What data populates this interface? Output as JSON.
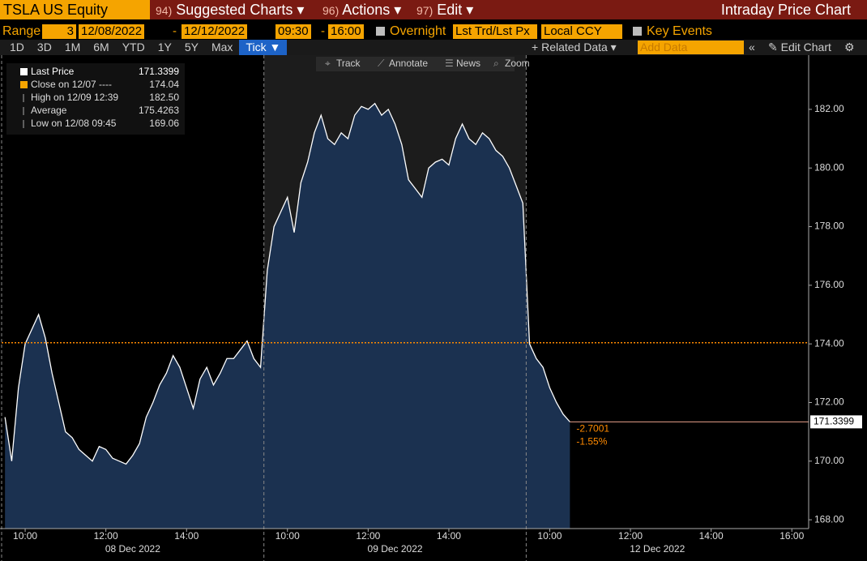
{
  "header": {
    "security": "TSLA US Equity",
    "menus": [
      {
        "number": "94)",
        "label": "Suggested Charts"
      },
      {
        "number": "96)",
        "label": "Actions"
      },
      {
        "number": "97)",
        "label": "Edit"
      }
    ],
    "page_title": "Intraday Price Chart"
  },
  "range_bar": {
    "label": "Range",
    "range_value": "3",
    "start_date": "12/08/2022",
    "end_date": "12/12/2022",
    "start_time": "09:30",
    "end_time": "16:00",
    "overnight": "Overnight",
    "price_type": "Lst Trd/Lst Px",
    "currency": "Local CCY",
    "key_events": "Key Events"
  },
  "periods": [
    "1D",
    "3D",
    "1M",
    "6M",
    "YTD",
    "1Y",
    "5Y",
    "Max",
    "Tick"
  ],
  "toolbar": {
    "related_data": "Related Data",
    "add_data": "Add Data",
    "edit_chart": "Edit Chart"
  },
  "chart_tools": [
    "Track",
    "Annotate",
    "News",
    "Zoom"
  ],
  "legend": [
    {
      "label": "Close on 12/07 ----",
      "value": "174.04"
    },
    {
      "label": "High on 12/09 12:39",
      "value": "182.50"
    },
    {
      "label": "Average",
      "value": "175.4263"
    },
    {
      "label": "Low on 12/08 09:45",
      "value": "169.06"
    }
  ],
  "chart_data": {
    "type": "area",
    "categories": [
      null,
      null,
      null,
      "10:00",
      null,
      null,
      null,
      null,
      null,
      null,
      null,
      null,
      null,
      null,
      null,
      "12:00",
      null,
      null,
      null,
      null,
      null,
      null,
      null,
      null,
      null,
      null,
      null,
      "14:00",
      null,
      null,
      null,
      null,
      null,
      null,
      null,
      null,
      null,
      null,
      null,
      null,
      null,
      null,
      "10:00",
      null,
      null,
      null,
      null,
      null,
      null,
      null,
      null,
      null,
      null,
      null,
      "12:00",
      null,
      null,
      null,
      null,
      null,
      null,
      null,
      null,
      null,
      null,
      null,
      "14:00",
      null,
      null,
      null,
      null,
      null,
      null,
      null,
      null,
      null,
      null,
      null,
      null,
      null,
      null,
      "10:00",
      null,
      null,
      null,
      null,
      null,
      null,
      null,
      null,
      null,
      null,
      null,
      "12:00",
      null,
      null,
      null,
      null,
      null,
      null,
      null,
      null,
      null,
      null,
      null,
      "14:00",
      null,
      null,
      null,
      null,
      null,
      null,
      null,
      null,
      null,
      null,
      null,
      "16:00",
      null,
      null
    ],
    "day_labels": [
      "08 Dec 2022",
      "09 Dec 2022",
      "12 Dec 2022"
    ],
    "series": [
      {
        "name": "Last Price",
        "color": "#ffffff",
        "fill": "#1b3150",
        "values": [
          171.5,
          170.0,
          172.5,
          174.0,
          174.5,
          175.0,
          174.2,
          173.0,
          172.0,
          171.0,
          170.8,
          170.4,
          170.2,
          170.0,
          170.5,
          170.4,
          170.1,
          170.0,
          169.9,
          170.2,
          170.6,
          171.5,
          172.0,
          172.6,
          173.0,
          173.6,
          173.2,
          172.5,
          171.8,
          172.8,
          173.2,
          172.6,
          173.0,
          173.5,
          173.5,
          173.8,
          174.1,
          173.5,
          173.2,
          176.5,
          178.0,
          178.5,
          179.0,
          177.8,
          179.5,
          180.2,
          181.2,
          181.8,
          181.0,
          180.8,
          181.2,
          181.0,
          181.8,
          182.1,
          182.0,
          182.2,
          181.8,
          182.0,
          181.5,
          180.8,
          179.6,
          179.3,
          179.0,
          180.0,
          180.2,
          180.3,
          180.1,
          181.0,
          181.5,
          181.0,
          180.8,
          181.2,
          181.0,
          180.6,
          180.4,
          180.0,
          179.4,
          178.8,
          174.0,
          173.5,
          173.2,
          172.5,
          172.0,
          171.6,
          171.34,
          null,
          null,
          null,
          null,
          null,
          null,
          null,
          null,
          null,
          null,
          null,
          null,
          null,
          null,
          null,
          null,
          null,
          null,
          null,
          null,
          null,
          null,
          null,
          null,
          null,
          null,
          null,
          null,
          null,
          null,
          null,
          null,
          null,
          null,
          null
        ]
      }
    ],
    "ylim": [
      167.7,
      183.85
    ],
    "yticks": [
      {
        "value": 168,
        "label": "168.00"
      },
      {
        "value": 170,
        "label": "170.00"
      },
      {
        "value": 172,
        "label": "172.00"
      },
      {
        "value": 174,
        "label": "174.00"
      },
      {
        "value": 176,
        "label": "176.00"
      },
      {
        "value": 178,
        "label": "178.00"
      },
      {
        "value": 180,
        "label": "180.00"
      },
      {
        "value": 182,
        "label": "182.00"
      }
    ],
    "grid": false,
    "reference_line": {
      "value": 174.04,
      "color": "#ff8a00"
    },
    "last_price": {
      "value": 171.3399,
      "change": "-2.7001",
      "change_pct": "-1.55%",
      "color": "#ff8a00"
    }
  }
}
